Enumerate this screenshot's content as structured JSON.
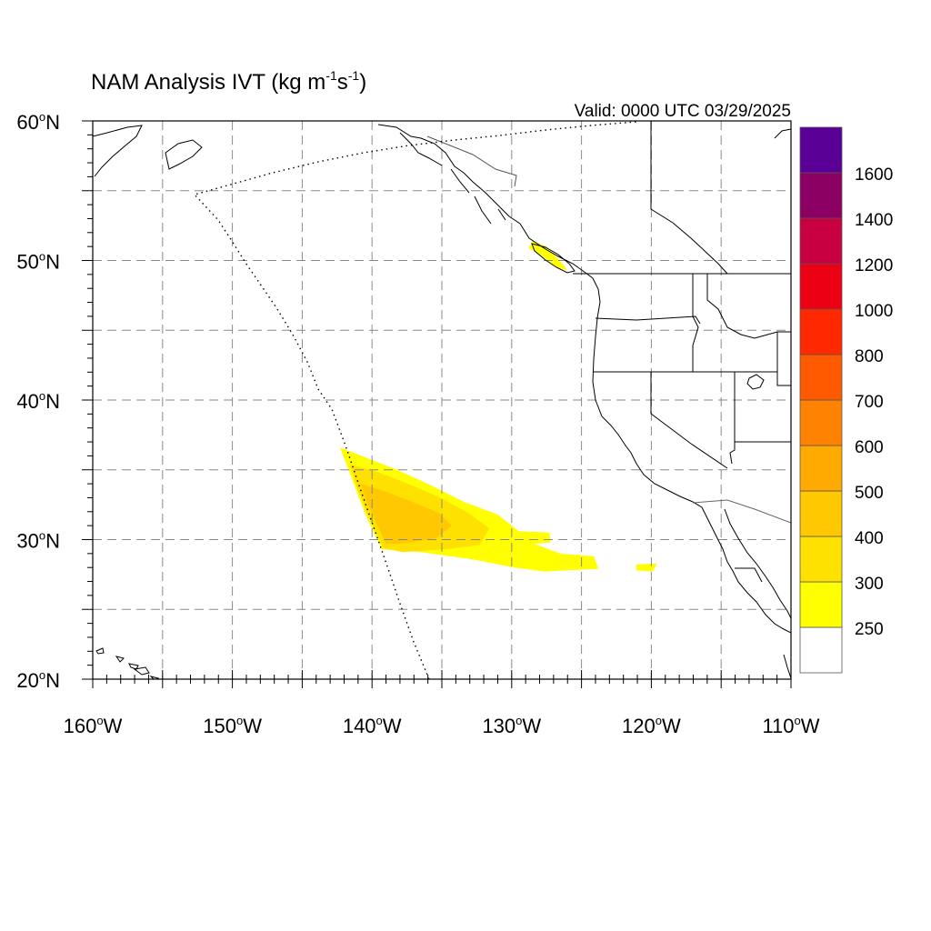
{
  "map": {
    "title_main": "NAM Analysis IVT (kg m",
    "title_exp1": "-1",
    "title_mid": "s",
    "title_exp2": "-1",
    "title_close": ")",
    "valid": "Valid: 0000 UTC 03/29/2025",
    "lat_labels": [
      {
        "deg": "60",
        "hemi": "N",
        "lat": 60
      },
      {
        "deg": "50",
        "hemi": "N",
        "lat": 50
      },
      {
        "deg": "40",
        "hemi": "N",
        "lat": 40
      },
      {
        "deg": "30",
        "hemi": "N",
        "lat": 30
      },
      {
        "deg": "20",
        "hemi": "N",
        "lat": 20
      }
    ],
    "lon_labels": [
      {
        "deg": "160",
        "hemi": "W",
        "lon": -160
      },
      {
        "deg": "150",
        "hemi": "W",
        "lon": -150
      },
      {
        "deg": "140",
        "hemi": "W",
        "lon": -140
      },
      {
        "deg": "130",
        "hemi": "W",
        "lon": -130
      },
      {
        "deg": "120",
        "hemi": "W",
        "lon": -120
      },
      {
        "deg": "110",
        "hemi": "W",
        "lon": -110
      }
    ],
    "extent": {
      "lon_min": -160,
      "lon_max": -110,
      "lat_min": 20,
      "lat_max": 60
    }
  },
  "colorbar": {
    "levels": [
      "250",
      "300",
      "400",
      "500",
      "600",
      "700",
      "800",
      "1000",
      "1200",
      "1400",
      "1600"
    ],
    "colors": [
      "#ffffff",
      "#ffff00",
      "#ffe100",
      "#ffc800",
      "#ffaa00",
      "#ff8200",
      "#ff5a00",
      "#ff2800",
      "#eb0014",
      "#c80041",
      "#8c0064",
      "#5a0096"
    ]
  },
  "ivt_regions": [
    {
      "level": "250",
      "color": "#ffff00",
      "coords": [
        [
          -142.3,
          36.6
        ],
        [
          -140.5,
          35.9
        ],
        [
          -138.2,
          35.0
        ],
        [
          -135.8,
          33.9
        ],
        [
          -133.4,
          32.7
        ],
        [
          -131.0,
          31.8
        ],
        [
          -129.5,
          30.6
        ],
        [
          -127.3,
          30.5
        ],
        [
          -127.2,
          29.8
        ],
        [
          -128.4,
          29.7
        ],
        [
          -126.5,
          29.0
        ],
        [
          -124.1,
          28.8
        ],
        [
          -123.8,
          27.9
        ],
        [
          -126.1,
          27.8
        ],
        [
          -127.6,
          27.7
        ],
        [
          -129.8,
          28.0
        ],
        [
          -132.9,
          28.6
        ],
        [
          -136.5,
          29.1
        ],
        [
          -139.3,
          29.3
        ],
        [
          -140.4,
          31.6
        ],
        [
          -141.3,
          34.0
        ],
        [
          -142.3,
          36.6
        ]
      ]
    },
    {
      "level": "300",
      "color": "#ffe100",
      "coords": [
        [
          -141.6,
          35.4
        ],
        [
          -139.8,
          34.9
        ],
        [
          -137.4,
          34.0
        ],
        [
          -135.1,
          33.0
        ],
        [
          -133.1,
          31.9
        ],
        [
          -131.6,
          30.8
        ],
        [
          -132.3,
          29.6
        ],
        [
          -134.8,
          29.3
        ],
        [
          -137.8,
          29.1
        ],
        [
          -139.2,
          29.4
        ],
        [
          -140.2,
          31.5
        ],
        [
          -141.0,
          33.5
        ],
        [
          -141.6,
          35.4
        ]
      ]
    },
    {
      "level": "400",
      "color": "#ffc800",
      "coords": [
        [
          -140.8,
          34.0
        ],
        [
          -139.2,
          33.5
        ],
        [
          -137.1,
          32.7
        ],
        [
          -135.2,
          31.9
        ],
        [
          -134.3,
          31.0
        ],
        [
          -135.4,
          30.1
        ],
        [
          -137.8,
          29.7
        ],
        [
          -139.0,
          29.7
        ],
        [
          -139.8,
          31.4
        ],
        [
          -140.4,
          32.8
        ],
        [
          -140.8,
          34.0
        ]
      ]
    },
    {
      "level": "250",
      "color": "#ffff00",
      "coords": [
        [
          -121.1,
          28.2
        ],
        [
          -119.6,
          28.3
        ],
        [
          -119.9,
          27.7
        ],
        [
          -121.1,
          27.8
        ],
        [
          -121.1,
          28.2
        ]
      ]
    },
    {
      "level": "250",
      "color": "#ffff00",
      "coords": [
        [
          -128.5,
          51.4
        ],
        [
          -127.5,
          51.0
        ],
        [
          -126.3,
          49.7
        ],
        [
          -126.0,
          49.3
        ],
        [
          -126.8,
          49.5
        ],
        [
          -127.8,
          50.3
        ],
        [
          -128.8,
          50.9
        ],
        [
          -128.5,
          51.4
        ]
      ]
    }
  ]
}
